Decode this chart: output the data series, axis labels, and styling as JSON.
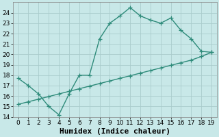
{
  "line1_x": [
    0,
    1,
    2,
    3,
    4,
    5,
    6,
    7,
    8,
    9,
    10,
    11,
    12,
    13,
    14,
    15,
    16,
    17,
    18,
    19
  ],
  "line1_y": [
    17.7,
    17.0,
    16.2,
    15.0,
    14.2,
    16.2,
    18.0,
    18.0,
    21.5,
    23.0,
    23.7,
    24.5,
    23.7,
    23.3,
    23.0,
    23.5,
    22.3,
    21.5,
    20.3,
    20.2
  ],
  "line2_x": [
    0,
    1,
    2,
    3,
    4,
    5,
    6,
    7,
    8,
    9,
    10,
    11,
    12,
    13,
    14,
    15,
    16,
    17,
    18,
    19
  ],
  "line2_y": [
    15.2,
    15.45,
    15.7,
    15.95,
    16.2,
    16.45,
    16.7,
    16.95,
    17.2,
    17.45,
    17.7,
    17.95,
    18.2,
    18.45,
    18.7,
    18.95,
    19.2,
    19.45,
    19.8,
    20.2
  ],
  "line_color": "#2e8b7a",
  "bg_color": "#c8e8e8",
  "grid_color": "#b0d8d8",
  "xlabel": "Humidex (Indice chaleur)",
  "ylim": [
    14,
    25
  ],
  "xlim": [
    -0.5,
    19.5
  ],
  "yticks": [
    14,
    15,
    16,
    17,
    18,
    19,
    20,
    21,
    22,
    23,
    24
  ],
  "xticks": [
    0,
    1,
    2,
    3,
    4,
    5,
    6,
    7,
    8,
    9,
    10,
    11,
    12,
    13,
    14,
    15,
    16,
    17,
    18,
    19
  ],
  "marker": "+",
  "markersize": 4,
  "linewidth": 1.0,
  "xlabel_fontsize": 8,
  "tick_fontsize": 6.5
}
